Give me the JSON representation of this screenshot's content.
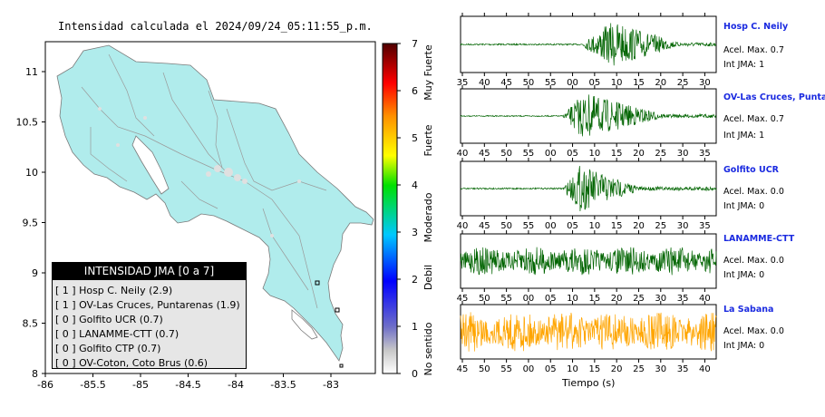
{
  "title": "Intensidad calculada el 2024/09/24_05:11:55_p.m.",
  "map": {
    "lon_ticks": [
      "-86",
      "-85.5",
      "-85",
      "-84.5",
      "-84",
      "-83.5",
      "-83"
    ],
    "lat_ticks": [
      "8",
      "8.5",
      "9",
      "9.5",
      "10",
      "10.5",
      "11"
    ],
    "land_color": "#b0ecec",
    "water_color": "#ffffff"
  },
  "colorbar": {
    "ticks": [
      "0",
      "1",
      "2",
      "3",
      "4",
      "5",
      "6",
      "7"
    ],
    "categories": [
      "No sentido",
      "Debil",
      "Moderado",
      "Fuerte",
      "Muy Fuerte"
    ],
    "max": 7
  },
  "legend": {
    "title": "INTENSIDAD JMA [0 a 7]",
    "items": [
      "[ 1 ]  Hosp C. Neily (2.9)",
      "[ 1 ]  OV-Las Cruces, Puntarenas (1.9)",
      "[ 0 ]  Golfito UCR (0.7)",
      "[ 0 ]  LANAMME-CTT (0.7)",
      "[ 0 ]  Golfito CTP (0.7)",
      "[ 0 ]  OV-Coton, Coto Brus (0.6)"
    ]
  },
  "stations": [
    {
      "name": "Hosp C. Neily",
      "acel": "Acel. Max. 0.7",
      "jma": "Int JMA: 1",
      "ticks": [
        "35",
        "40",
        "45",
        "50",
        "55",
        "00",
        "05",
        "10",
        "15",
        "20",
        "25",
        "30"
      ],
      "color": "#006400"
    },
    {
      "name": "OV-Las Cruces, Puntar",
      "acel": "Acel. Max. 0.7",
      "jma": "Int JMA: 1",
      "ticks": [
        "40",
        "45",
        "50",
        "55",
        "00",
        "05",
        "10",
        "15",
        "20",
        "25",
        "30",
        "35"
      ],
      "color": "#006400"
    },
    {
      "name": "Golfito UCR",
      "acel": "Acel. Max. 0.0",
      "jma": "Int JMA: 0",
      "ticks": [
        "40",
        "45",
        "50",
        "55",
        "00",
        "05",
        "10",
        "15",
        "20",
        "25",
        "30",
        "35"
      ],
      "color": "#006400"
    },
    {
      "name": "LANAMME-CTT",
      "acel": "Acel. Max. 0.0",
      "jma": "Int JMA: 0",
      "ticks": [
        "45",
        "50",
        "55",
        "00",
        "05",
        "10",
        "15",
        "20",
        "25",
        "30",
        "35",
        "40"
      ],
      "color": "#006400"
    },
    {
      "name": "La Sabana",
      "acel": "Acel. Max. 0.0",
      "jma": "Int JMA: 0",
      "ticks": [
        "45",
        "50",
        "55",
        "00",
        "05",
        "10",
        "15",
        "20",
        "25",
        "30",
        "35",
        "40"
      ],
      "color": "#ffa500"
    }
  ],
  "xlabel": "Tiempo (s)",
  "chart_data": [
    {
      "type": "map",
      "title": "Intensidad calculada el 2024/09/24_05:11:55_p.m.",
      "xlim": [
        -86,
        -82.6
      ],
      "ylim": [
        8,
        11.3
      ],
      "colorbar_range": [
        0,
        7
      ]
    },
    {
      "type": "line",
      "series": "Hosp C. Neily",
      "x_tick_labels": [
        "35",
        "40",
        "45",
        "50",
        "55",
        "00",
        "05",
        "10",
        "15",
        "20",
        "25",
        "30"
      ],
      "peak_acceleration": 0.7,
      "jma_intensity": 1
    },
    {
      "type": "line",
      "series": "OV-Las Cruces, Puntar",
      "x_tick_labels": [
        "40",
        "45",
        "50",
        "55",
        "00",
        "05",
        "10",
        "15",
        "20",
        "25",
        "30",
        "35"
      ],
      "peak_acceleration": 0.7,
      "jma_intensity": 1
    },
    {
      "type": "line",
      "series": "Golfito UCR",
      "x_tick_labels": [
        "40",
        "45",
        "50",
        "55",
        "00",
        "05",
        "10",
        "15",
        "20",
        "25",
        "30",
        "35"
      ],
      "peak_acceleration": 0.0,
      "jma_intensity": 0
    },
    {
      "type": "line",
      "series": "LANAMME-CTT",
      "x_tick_labels": [
        "45",
        "50",
        "55",
        "00",
        "05",
        "10",
        "15",
        "20",
        "25",
        "30",
        "35",
        "40"
      ],
      "peak_acceleration": 0.0,
      "jma_intensity": 0
    },
    {
      "type": "line",
      "series": "La Sabana",
      "x_tick_labels": [
        "45",
        "50",
        "55",
        "00",
        "05",
        "10",
        "15",
        "20",
        "25",
        "30",
        "35",
        "40"
      ],
      "peak_acceleration": 0.0,
      "jma_intensity": 0
    }
  ]
}
